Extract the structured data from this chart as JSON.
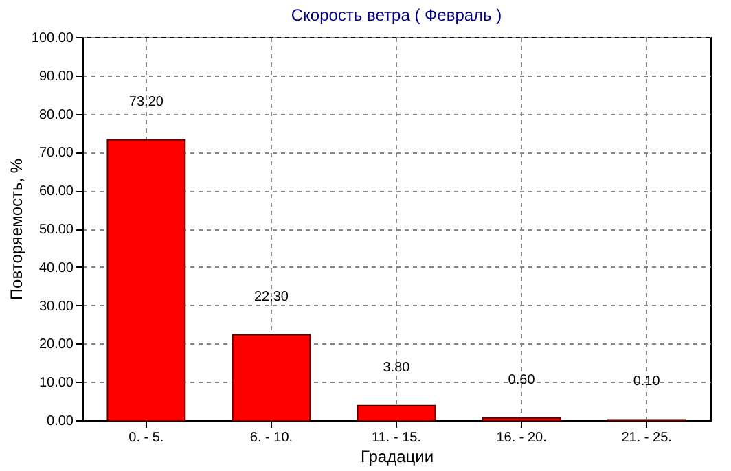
{
  "chart_data": {
    "type": "bar",
    "title": "Скорость ветра    ( Февраль )",
    "xlabel": "Градации",
    "ylabel": "Повторяемость, %",
    "categories": [
      "0. - 5.",
      "6. - 10.",
      "11. - 15.",
      "16. - 20.",
      "21. - 25."
    ],
    "values": [
      73.2,
      22.3,
      3.8,
      0.6,
      0.1
    ],
    "value_labels": [
      "73.20",
      "22.30",
      "3.80",
      "0.60",
      "0.10"
    ],
    "color": "#ff0000",
    "ylim": [
      0,
      100
    ],
    "yticks": [
      {
        "value": 0,
        "label": "0.00"
      },
      {
        "value": 10,
        "label": "10.00"
      },
      {
        "value": 20,
        "label": "20.00"
      },
      {
        "value": 30,
        "label": "30.00"
      },
      {
        "value": 40,
        "label": "40.00"
      },
      {
        "value": 50,
        "label": "50.00"
      },
      {
        "value": 60,
        "label": "60.00"
      },
      {
        "value": 70,
        "label": "70.00"
      },
      {
        "value": 80,
        "label": "80.00"
      },
      {
        "value": 90,
        "label": "90.00"
      },
      {
        "value": 100,
        "label": "100.00"
      }
    ],
    "grid": true
  }
}
